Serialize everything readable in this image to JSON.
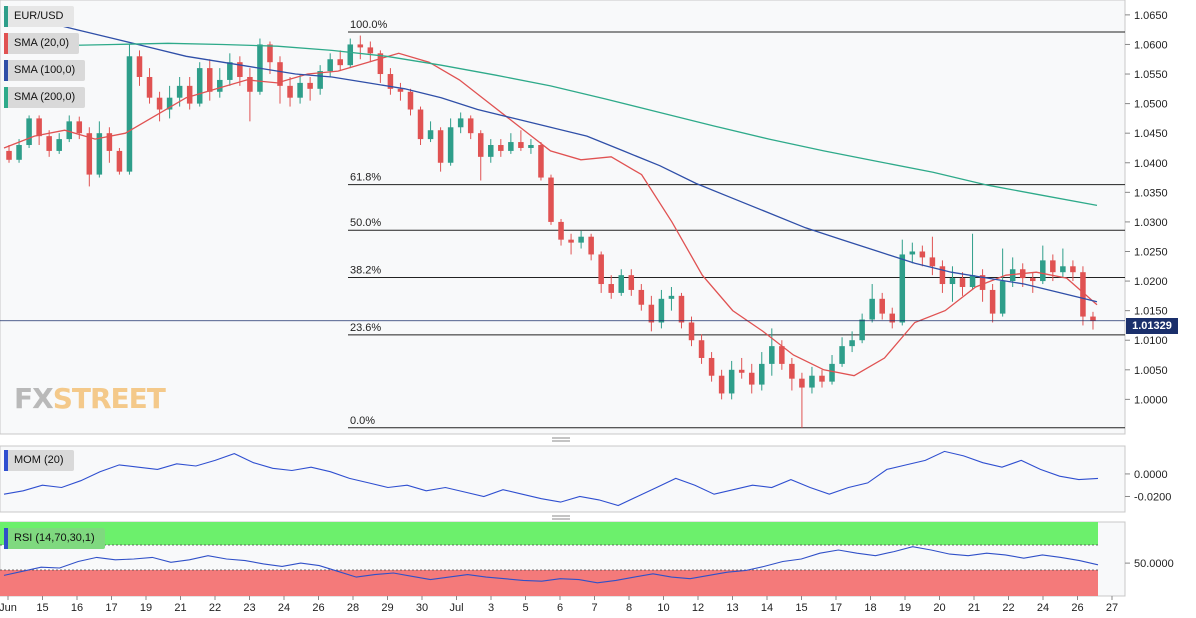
{
  "legend": {
    "pair": "EUR/USD",
    "sma20": "SMA (20,0)",
    "sma100": "SMA (100,0)",
    "sma200": "SMA (200,0)",
    "mom": "MOM (20)",
    "rsi": "RSI (14,70,30,1)"
  },
  "logo": {
    "fx": "FX",
    "street": "STREET",
    "icon": "fxstreet-logo"
  },
  "current_price": "1.01329",
  "colors": {
    "up": "#2e9e8a",
    "down": "#e05252",
    "sma20": "#e05252",
    "sma100": "#2f4fa8",
    "sma200": "#2eaa8a",
    "mom": "#2f4fd0",
    "rsi": "#3050c8",
    "rsi_overbought": "#6cf06c",
    "rsi_oversold": "#f47a7a",
    "price_tag": "#1a2f6b"
  },
  "chart_data": {
    "type": "candlestick",
    "price_axis": {
      "ylim": [
        0.9955,
        1.0665
      ],
      "ticks": [
        "1.0650",
        "1.0600",
        "1.0550",
        "1.0500",
        "1.0450",
        "1.0400",
        "1.0350",
        "1.0300",
        "1.0250",
        "1.0200",
        "1.0150",
        "1.0100",
        "1.0050",
        "1.0000"
      ]
    },
    "x_axis": {
      "ticks": [
        "Jun",
        "15",
        "16",
        "17",
        "19",
        "21",
        "22",
        "23",
        "24",
        "26",
        "28",
        "29",
        "30",
        "Jul",
        "3",
        "5",
        "6",
        "7",
        "8",
        "10",
        "12",
        "13",
        "14",
        "15",
        "17",
        "18",
        "19",
        "20",
        "21",
        "22",
        "24",
        "26",
        "27"
      ]
    },
    "fibonacci": [
      {
        "label": "100.0%",
        "level": 1.0621
      },
      {
        "label": "61.8%",
        "level": 1.0363
      },
      {
        "label": "50.0%",
        "level": 1.0286
      },
      {
        "label": "38.2%",
        "level": 1.0206
      },
      {
        "label": "23.6%",
        "level": 1.0109
      },
      {
        "label": "0.0%",
        "level": 0.9952
      }
    ],
    "current_price_level": 1.01329,
    "sma_series": [
      {
        "key": "sma20",
        "values": [
          1.0425,
          1.0445,
          1.0455,
          1.044,
          1.045,
          1.048,
          1.051,
          1.0525,
          1.054,
          1.0535,
          1.055,
          1.0555,
          1.057,
          1.0585,
          1.057,
          1.054,
          1.05,
          1.046,
          1.042,
          1.0405,
          1.041,
          1.038,
          1.03,
          1.021,
          1.015,
          1.0115,
          1.0075,
          1.005,
          1.004,
          1.007,
          1.013,
          1.015,
          1.019,
          1.021,
          1.0215,
          1.0205,
          1.016
        ]
      },
      {
        "key": "sma100",
        "values": [
          1.0655,
          1.064,
          1.0625,
          1.061,
          1.0595,
          1.058,
          1.057,
          1.056,
          1.055,
          1.0545,
          1.0535,
          1.0525,
          1.051,
          1.049,
          1.0475,
          1.046,
          1.0445,
          1.042,
          1.0395,
          1.0365,
          1.034,
          1.0315,
          1.029,
          1.027,
          1.025,
          1.023,
          1.0215,
          1.0205,
          1.0195,
          1.018,
          1.0165
        ]
      },
      {
        "key": "sma200",
        "values": [
          1.0595,
          1.0598,
          1.06,
          1.0602,
          1.06,
          1.0597,
          1.059,
          1.058,
          1.0565,
          1.0548,
          1.053,
          1.0508,
          1.0485,
          1.0462,
          1.044,
          1.042,
          1.0402,
          1.0384,
          1.0362,
          1.0345,
          1.0328
        ]
      }
    ],
    "candles": [
      [
        1.042,
        1.0405,
        1.043,
        1.04
      ],
      [
        1.0405,
        1.043,
        1.044,
        1.04
      ],
      [
        1.043,
        1.0475,
        1.048,
        1.0425
      ],
      [
        1.0475,
        1.0445,
        1.048,
        1.043
      ],
      [
        1.0445,
        1.042,
        1.0455,
        1.041
      ],
      [
        1.042,
        1.044,
        1.045,
        1.0415
      ],
      [
        1.044,
        1.047,
        1.048,
        1.0435
      ],
      [
        1.047,
        1.045,
        1.0478,
        1.044
      ],
      [
        1.045,
        1.038,
        1.046,
        1.036
      ],
      [
        1.038,
        1.045,
        1.047,
        1.0375
      ],
      [
        1.045,
        1.042,
        1.046,
        1.04
      ],
      [
        1.042,
        1.0385,
        1.0425,
        1.038
      ],
      [
        1.0385,
        1.058,
        1.06,
        1.038
      ],
      [
        1.058,
        1.0545,
        1.059,
        1.053
      ],
      [
        1.0545,
        1.051,
        1.056,
        1.05
      ],
      [
        1.051,
        1.049,
        1.052,
        1.047
      ],
      [
        1.049,
        1.051,
        1.053,
        1.0475
      ],
      [
        1.051,
        1.053,
        1.0545,
        1.0495
      ],
      [
        1.053,
        1.05,
        1.0545,
        1.049
      ],
      [
        1.05,
        1.056,
        1.057,
        1.0495
      ],
      [
        1.056,
        1.052,
        1.0575,
        1.0505
      ],
      [
        1.052,
        1.054,
        1.056,
        1.051
      ],
      [
        1.054,
        1.057,
        1.0585,
        1.053
      ],
      [
        1.057,
        1.0545,
        1.058,
        1.053
      ],
      [
        1.0545,
        1.052,
        1.056,
        1.047
      ],
      [
        1.052,
        1.06,
        1.061,
        1.0515
      ],
      [
        1.06,
        1.057,
        1.0605,
        1.055
      ],
      [
        1.057,
        1.053,
        1.058,
        1.05
      ],
      [
        1.053,
        1.051,
        1.0545,
        1.0495
      ],
      [
        1.051,
        1.0535,
        1.055,
        1.05
      ],
      [
        1.0535,
        1.0525,
        1.0545,
        1.0505
      ],
      [
        1.0525,
        1.0555,
        1.0565,
        1.0515
      ],
      [
        1.0555,
        1.0575,
        1.0585,
        1.0545
      ],
      [
        1.0575,
        1.0565,
        1.059,
        1.0555
      ],
      [
        1.0565,
        1.06,
        1.061,
        1.056
      ],
      [
        1.06,
        1.0595,
        1.0615,
        1.0575
      ],
      [
        1.0595,
        1.0585,
        1.0605,
        1.057
      ],
      [
        1.0585,
        1.055,
        1.059,
        1.0535
      ],
      [
        1.055,
        1.0525,
        1.056,
        1.0515
      ],
      [
        1.0525,
        1.052,
        1.0535,
        1.0505
      ],
      [
        1.052,
        1.049,
        1.0525,
        1.048
      ],
      [
        1.049,
        1.044,
        1.0495,
        1.043
      ],
      [
        1.044,
        1.0455,
        1.047,
        1.0435
      ],
      [
        1.0455,
        1.04,
        1.046,
        1.0385
      ],
      [
        1.04,
        1.046,
        1.0475,
        1.0395
      ],
      [
        1.046,
        1.0475,
        1.0485,
        1.045
      ],
      [
        1.0475,
        1.045,
        1.048,
        1.044
      ],
      [
        1.045,
        1.041,
        1.0455,
        1.037
      ],
      [
        1.041,
        1.043,
        1.044,
        1.04
      ],
      [
        1.043,
        1.042,
        1.044,
        1.041
      ],
      [
        1.042,
        1.0435,
        1.045,
        1.0415
      ],
      [
        1.0435,
        1.0425,
        1.0455,
        1.042
      ],
      [
        1.0425,
        1.043,
        1.044,
        1.0415
      ],
      [
        1.043,
        1.0375,
        1.0435,
        1.037
      ],
      [
        1.0375,
        1.03,
        1.038,
        1.0295
      ],
      [
        1.03,
        1.027,
        1.0305,
        1.026
      ],
      [
        1.027,
        1.0265,
        1.028,
        1.0245
      ],
      [
        1.0265,
        1.0275,
        1.0285,
        1.0255
      ],
      [
        1.0275,
        1.0245,
        1.028,
        1.0235
      ],
      [
        1.0245,
        1.0195,
        1.025,
        1.018
      ],
      [
        1.0195,
        1.018,
        1.021,
        1.017
      ],
      [
        1.018,
        1.021,
        1.022,
        1.0175
      ],
      [
        1.021,
        1.0185,
        1.022,
        1.0175
      ],
      [
        1.0185,
        1.016,
        1.0195,
        1.015
      ],
      [
        1.016,
        1.013,
        1.0175,
        1.0115
      ],
      [
        1.013,
        1.017,
        1.0185,
        1.012
      ],
      [
        1.017,
        1.0175,
        1.019,
        1.015
      ],
      [
        1.0175,
        1.013,
        1.018,
        1.012
      ],
      [
        1.013,
        1.01,
        1.014,
        1.009
      ],
      [
        1.01,
        1.007,
        1.011,
        1.006
      ],
      [
        1.007,
        1.004,
        1.008,
        1.003
      ],
      [
        1.004,
        1.001,
        1.005,
        1.0
      ],
      [
        1.001,
        1.005,
        1.0065,
        1.0
      ],
      [
        1.005,
        1.0045,
        1.007,
        1.0035
      ],
      [
        1.0045,
        1.0025,
        1.006,
        1.001
      ],
      [
        1.0025,
        1.006,
        1.008,
        1.0015
      ],
      [
        1.006,
        1.009,
        1.012,
        1.004
      ],
      [
        1.009,
        1.006,
        1.01,
        1.005
      ],
      [
        1.006,
        1.0035,
        1.007,
        1.0015
      ],
      [
        1.0035,
        1.002,
        1.0045,
        0.9952
      ],
      [
        1.002,
        1.004,
        1.0055,
        1.001
      ],
      [
        1.004,
        1.003,
        1.005,
        1.002
      ],
      [
        1.003,
        1.006,
        1.0075,
        1.0025
      ],
      [
        1.006,
        1.009,
        1.0105,
        1.0055
      ],
      [
        1.009,
        1.01,
        1.0115,
        1.008
      ],
      [
        1.01,
        1.0135,
        1.0145,
        1.0095
      ],
      [
        1.0135,
        1.017,
        1.0195,
        1.013
      ],
      [
        1.017,
        1.0145,
        1.018,
        1.0135
      ],
      [
        1.0145,
        1.013,
        1.0155,
        1.012
      ],
      [
        1.013,
        1.0245,
        1.027,
        1.0125
      ],
      [
        1.0245,
        1.025,
        1.0265,
        1.023
      ],
      [
        1.025,
        1.024,
        1.026,
        1.0225
      ],
      [
        1.024,
        1.0225,
        1.0275,
        1.021
      ],
      [
        1.0225,
        1.0195,
        1.0235,
        1.018
      ],
      [
        1.0195,
        1.0205,
        1.0225,
        1.0165
      ],
      [
        1.0205,
        1.019,
        1.0215,
        1.0175
      ],
      [
        1.019,
        1.021,
        1.028,
        1.0185
      ],
      [
        1.021,
        1.0185,
        1.022,
        1.0165
      ],
      [
        1.0185,
        1.0145,
        1.0195,
        1.013
      ],
      [
        1.0145,
        1.02,
        1.0255,
        1.014
      ],
      [
        1.02,
        1.022,
        1.024,
        1.019
      ],
      [
        1.022,
        1.0205,
        1.023,
        1.019
      ],
      [
        1.0205,
        1.02,
        1.0215,
        1.018
      ],
      [
        1.02,
        1.0235,
        1.026,
        1.0195
      ],
      [
        1.0235,
        1.0215,
        1.0245,
        1.02
      ],
      [
        1.0215,
        1.0225,
        1.0255,
        1.0205
      ],
      [
        1.0225,
        1.0215,
        1.0235,
        1.02
      ],
      [
        1.0215,
        1.014,
        1.0225,
        1.0125
      ],
      [
        1.014,
        1.01329,
        1.0148,
        1.0118
      ]
    ],
    "momentum": {
      "ticks": [
        "0.0000",
        "-0.0200"
      ],
      "ylim": [
        -0.032,
        0.023
      ],
      "values": [
        -0.018,
        -0.015,
        -0.01,
        -0.012,
        -0.006,
        0.002,
        0.008,
        0.006,
        0.004,
        0.009,
        0.007,
        0.012,
        0.018,
        0.01,
        0.005,
        0.003,
        0.006,
        0.002,
        -0.004,
        -0.008,
        -0.012,
        -0.01,
        -0.015,
        -0.012,
        -0.016,
        -0.02,
        -0.014,
        -0.018,
        -0.022,
        -0.025,
        -0.02,
        -0.023,
        -0.028,
        -0.02,
        -0.012,
        -0.004,
        -0.01,
        -0.018,
        -0.014,
        -0.01,
        -0.012,
        -0.005,
        -0.012,
        -0.018,
        -0.012,
        -0.008,
        0.004,
        0.008,
        0.012,
        0.02,
        0.016,
        0.01,
        0.006,
        0.012,
        0.004,
        -0.002,
        -0.005,
        -0.004
      ]
    },
    "rsi": {
      "ticks": [
        "50.0000"
      ],
      "ylim": [
        10,
        100
      ],
      "overbought": 70,
      "oversold": 30,
      "values": [
        35,
        40,
        45,
        44,
        52,
        57,
        54,
        55,
        57,
        51,
        54,
        59,
        55,
        53,
        49,
        46,
        50,
        47,
        40,
        33,
        36,
        38,
        34,
        30,
        33,
        36,
        33,
        31,
        29,
        28,
        31,
        30,
        26,
        29,
        33,
        37,
        33,
        31,
        35,
        39,
        41,
        46,
        52,
        55,
        62,
        66,
        62,
        59,
        64,
        70,
        66,
        61,
        59,
        62,
        60,
        56,
        60,
        57,
        53,
        48
      ]
    }
  }
}
